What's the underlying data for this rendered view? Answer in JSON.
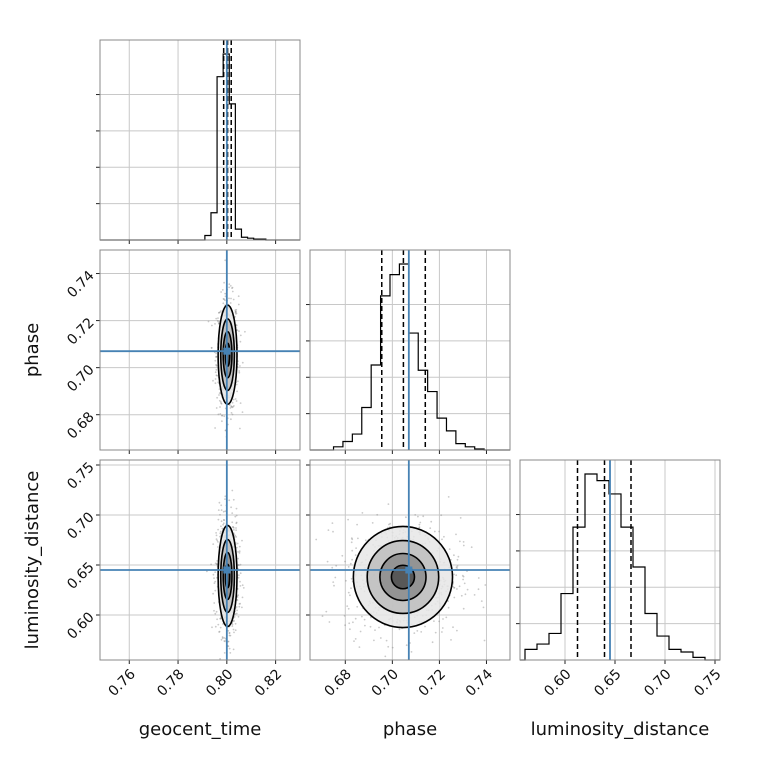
{
  "chart_data": {
    "type": "corner",
    "parameters": [
      "geocent_time",
      "phase",
      "luminosity_distance"
    ],
    "truths": {
      "geocent_time": 0.8,
      "phase": 0.707,
      "luminosity_distance": 0.645
    },
    "truth_color": "#4682b4",
    "grid": true,
    "ranges": {
      "geocent_time": [
        0.748,
        0.83
      ],
      "phase": [
        0.665,
        0.75
      ],
      "luminosity_distance": [
        0.555,
        0.755
      ]
    },
    "ticks": {
      "geocent_time": [
        "0.76",
        "0.78",
        "0.80",
        "0.82"
      ],
      "phase": [
        "0.68",
        "0.70",
        "0.72",
        "0.74"
      ],
      "luminosity_distance": [
        "0.60",
        "0.65",
        "0.70",
        "0.75"
      ]
    },
    "quantiles": {
      "geocent_time": [
        0.7987,
        0.8003,
        0.8018
      ],
      "phase": [
        0.6955,
        0.7047,
        0.714
      ],
      "luminosity_distance": [
        0.6125,
        0.6395,
        0.666
      ]
    },
    "histograms": {
      "geocent_time": {
        "edges": [
          0.791,
          0.7935,
          0.796,
          0.7985,
          0.801,
          0.8035,
          0.806,
          0.8085,
          0.811,
          0.8135,
          0.816,
          0.819
        ],
        "counts": [
          5,
          30,
          180,
          205,
          150,
          12,
          3,
          2,
          1,
          1,
          0
        ]
      },
      "phase": {
        "edges": [
          0.675,
          0.679,
          0.683,
          0.687,
          0.691,
          0.695,
          0.699,
          0.703,
          0.707,
          0.711,
          0.715,
          0.719,
          0.723,
          0.727,
          0.731,
          0.735,
          0.739
        ],
        "counts": [
          3,
          8,
          15,
          40,
          80,
          145,
          165,
          175,
          110,
          75,
          55,
          30,
          18,
          6,
          3,
          1
        ]
      },
      "luminosity_distance": {
        "edges": [
          0.56,
          0.572,
          0.584,
          0.596,
          0.608,
          0.62,
          0.632,
          0.644,
          0.656,
          0.668,
          0.68,
          0.692,
          0.704,
          0.716,
          0.728,
          0.74
        ],
        "counts": [
          8,
          12,
          20,
          50,
          100,
          140,
          135,
          125,
          100,
          70,
          35,
          18,
          8,
          6,
          2
        ]
      }
    },
    "posteriors_2d": [
      {
        "x": "geocent_time",
        "y": "phase",
        "center": [
          0.8003,
          0.7055
        ],
        "sigma": [
          0.0018,
          0.0098
        ],
        "rho": 0.0
      },
      {
        "x": "geocent_time",
        "y": "luminosity_distance",
        "center": [
          0.8003,
          0.639
        ],
        "sigma": [
          0.0018,
          0.0235
        ],
        "rho": 0.0
      },
      {
        "x": "phase",
        "y": "luminosity_distance",
        "center": [
          0.7045,
          0.638
        ],
        "sigma": [
          0.0098,
          0.0235
        ],
        "rho": 0.0
      }
    ]
  }
}
